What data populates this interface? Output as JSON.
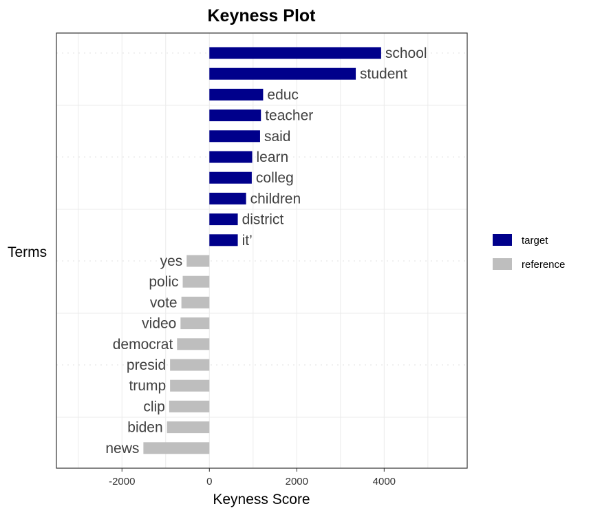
{
  "chart_data": {
    "type": "bar",
    "orientation": "horizontal",
    "title": "Keyness Plot",
    "xlabel": "Keyness Score",
    "ylabel": "Terms",
    "xlim": [
      -3500,
      5900
    ],
    "xticks": [
      -2000,
      0,
      2000,
      4000
    ],
    "xtick_labels": [
      "-2000",
      "0",
      "2000",
      "4000"
    ],
    "grid": true,
    "legend_position": "right",
    "series": [
      {
        "name": "target",
        "color": "#00008b",
        "categories": [
          "school",
          "student",
          "educ",
          "teacher",
          "said",
          "learn",
          "colleg",
          "children",
          "district",
          "it’"
        ],
        "values": [
          3930,
          3350,
          1230,
          1180,
          1160,
          980,
          970,
          840,
          650,
          650
        ]
      },
      {
        "name": "reference",
        "color": "#bebebe",
        "categories": [
          "yes",
          "polic",
          "vote",
          "video",
          "democrat",
          "presid",
          "trump",
          "clip",
          "biden",
          "news"
        ],
        "values": [
          -520,
          -610,
          -640,
          -660,
          -740,
          -900,
          -900,
          -920,
          -970,
          -1510
        ]
      }
    ]
  }
}
